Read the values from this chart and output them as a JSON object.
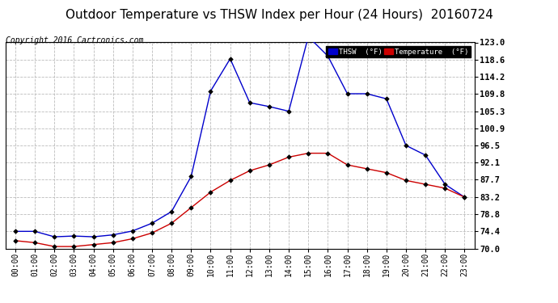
{
  "title": "Outdoor Temperature vs THSW Index per Hour (24 Hours)  20160724",
  "copyright": "Copyright 2016 Cartronics.com",
  "hours": [
    "00:00",
    "01:00",
    "02:00",
    "03:00",
    "04:00",
    "05:00",
    "06:00",
    "07:00",
    "08:00",
    "09:00",
    "10:00",
    "11:00",
    "12:00",
    "13:00",
    "14:00",
    "15:00",
    "16:00",
    "17:00",
    "18:00",
    "19:00",
    "20:00",
    "21:00",
    "22:00",
    "23:00"
  ],
  "thsw": [
    74.4,
    74.4,
    73.0,
    73.2,
    73.0,
    73.5,
    74.5,
    76.5,
    79.5,
    88.5,
    110.5,
    118.8,
    107.5,
    106.5,
    105.3,
    124.5,
    119.5,
    109.8,
    109.8,
    108.5,
    96.5,
    94.0,
    86.5,
    83.2
  ],
  "temp": [
    72.0,
    71.5,
    70.5,
    70.5,
    71.0,
    71.5,
    72.5,
    74.0,
    76.5,
    80.5,
    84.5,
    87.5,
    90.0,
    91.5,
    93.5,
    94.5,
    94.5,
    91.5,
    90.5,
    89.5,
    87.5,
    86.5,
    85.5,
    83.2
  ],
  "thsw_color": "#0000CC",
  "temp_color": "#CC0000",
  "bg_color": "#ffffff",
  "grid_color": "#bbbbbb",
  "ylim_min": 70.0,
  "ylim_max": 123.0,
  "yticks": [
    70.0,
    74.4,
    78.8,
    83.2,
    87.7,
    92.1,
    96.5,
    100.9,
    105.3,
    109.8,
    114.2,
    118.6,
    123.0
  ],
  "ytick_labels": [
    "70.0",
    "74.4",
    "78.8",
    "83.2",
    "87.7",
    "92.1",
    "96.5",
    "100.9",
    "105.3",
    "109.8",
    "114.2",
    "118.6",
    "123.0"
  ],
  "legend_thsw_label": "THSW  (°F)",
  "legend_temp_label": "Temperature  (°F)",
  "title_fontsize": 11,
  "tick_fontsize": 7,
  "copyright_fontsize": 7
}
